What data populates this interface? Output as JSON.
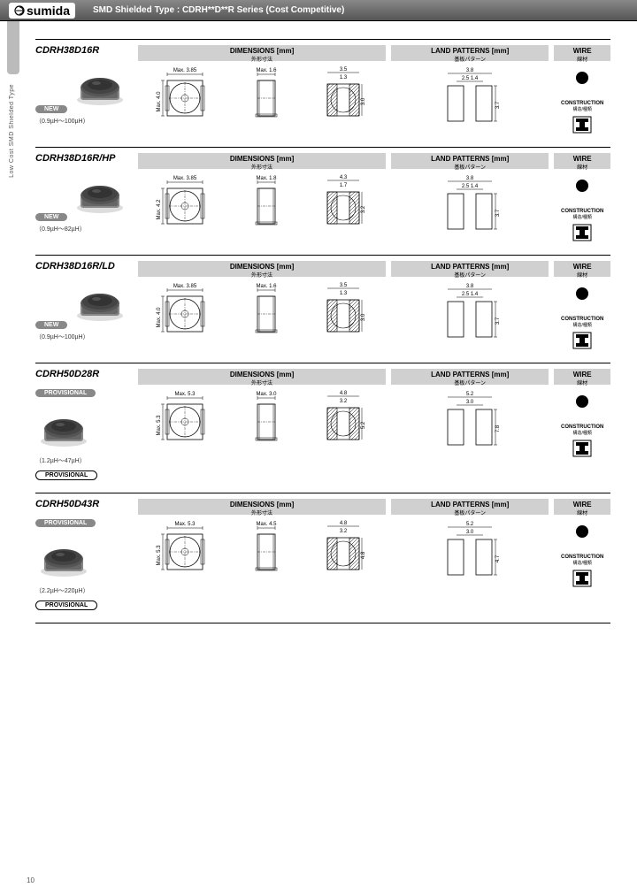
{
  "header": {
    "brand": "sumida",
    "doctype": "SMD Shielded Type : CDRH**D**R Series (Cost Competitive)"
  },
  "sidebar_text": "Low Cost SMD Shielded Type",
  "page_number": "10",
  "section_labels": {
    "dimensions": "DIMENSIONS [mm]",
    "dimensions_sub": "外形寸法",
    "land": "LAND PATTERNS [mm]",
    "land_sub": "基板パターン",
    "wire": "WIRE",
    "wire_sub": "線材",
    "construction": "CONSTRUCTION",
    "construction_sub": "構造/種類"
  },
  "products": [
    {
      "name": "CDRH38D16R",
      "badge": "NEW",
      "range": "（0.9µH～100µH）",
      "dims": {
        "top_w": "Max. 3.85",
        "top_h": "Max. 4.0",
        "side_h": "Max. 1.6",
        "foot_w": "3.5",
        "foot_inner": "1.3",
        "foot_h": "3.0"
      },
      "land": {
        "w": "3.8",
        "inner_w": "2.5",
        "gap": "1.4",
        "h": "3.7"
      }
    },
    {
      "name": "CDRH38D16R/HP",
      "badge": "NEW",
      "range": "（0.9µH～82µH）",
      "dims": {
        "top_w": "Max. 3.85",
        "top_h": "Max. 4.2",
        "side_h": "Max. 1.8",
        "foot_w": "4.3",
        "foot_inner": "1.7",
        "foot_h": "3.2"
      },
      "land": {
        "w": "3.8",
        "inner_w": "2.5",
        "gap": "1.4",
        "h": "3.7"
      }
    },
    {
      "name": "CDRH38D16R/LD",
      "badge": "NEW",
      "range": "（0.9µH～100µH）",
      "dims": {
        "top_w": "Max. 3.85",
        "top_h": "Max. 4.0",
        "side_h": "Max. 1.6",
        "foot_w": "3.5",
        "foot_inner": "1.3",
        "foot_h": "3.0"
      },
      "land": {
        "w": "3.8",
        "inner_w": "2.5",
        "gap": "1.4",
        "h": "3.7"
      }
    },
    {
      "name": "CDRH50D28R",
      "badge": "PROVISIONAL",
      "range": "（1.2µH～47µH）",
      "dims": {
        "top_w": "Max. 5.3",
        "top_h": "Max. 5.3",
        "side_h": "Max. 3.0",
        "foot_w": "4.8",
        "foot_inner": "3.2",
        "foot_h": "5.2"
      },
      "land": {
        "w": "5.2",
        "inner_w": "3.0",
        "gap": "",
        "h": "7.8"
      }
    },
    {
      "name": "CDRH50D43R",
      "badge": "PROVISIONAL",
      "range": "（2.2µH～220µH）",
      "dims": {
        "top_w": "Max. 5.3",
        "top_h": "Max. 5.3",
        "side_h": "Max. 4.5",
        "foot_w": "4.8",
        "foot_inner": "3.2",
        "foot_h": "4.8"
      },
      "land": {
        "w": "5.2",
        "inner_w": "3.0",
        "gap": "",
        "h": "4.7"
      }
    }
  ],
  "styling": {
    "colors": {
      "header_bg": "#666",
      "section_hdr_bg": "#d0d0d0",
      "border": "#000",
      "badge_bg": "#888",
      "page_bg": "#ffffff"
    },
    "fonts": {
      "part_name_size": 11,
      "label_size": 8,
      "small_size": 6
    }
  }
}
